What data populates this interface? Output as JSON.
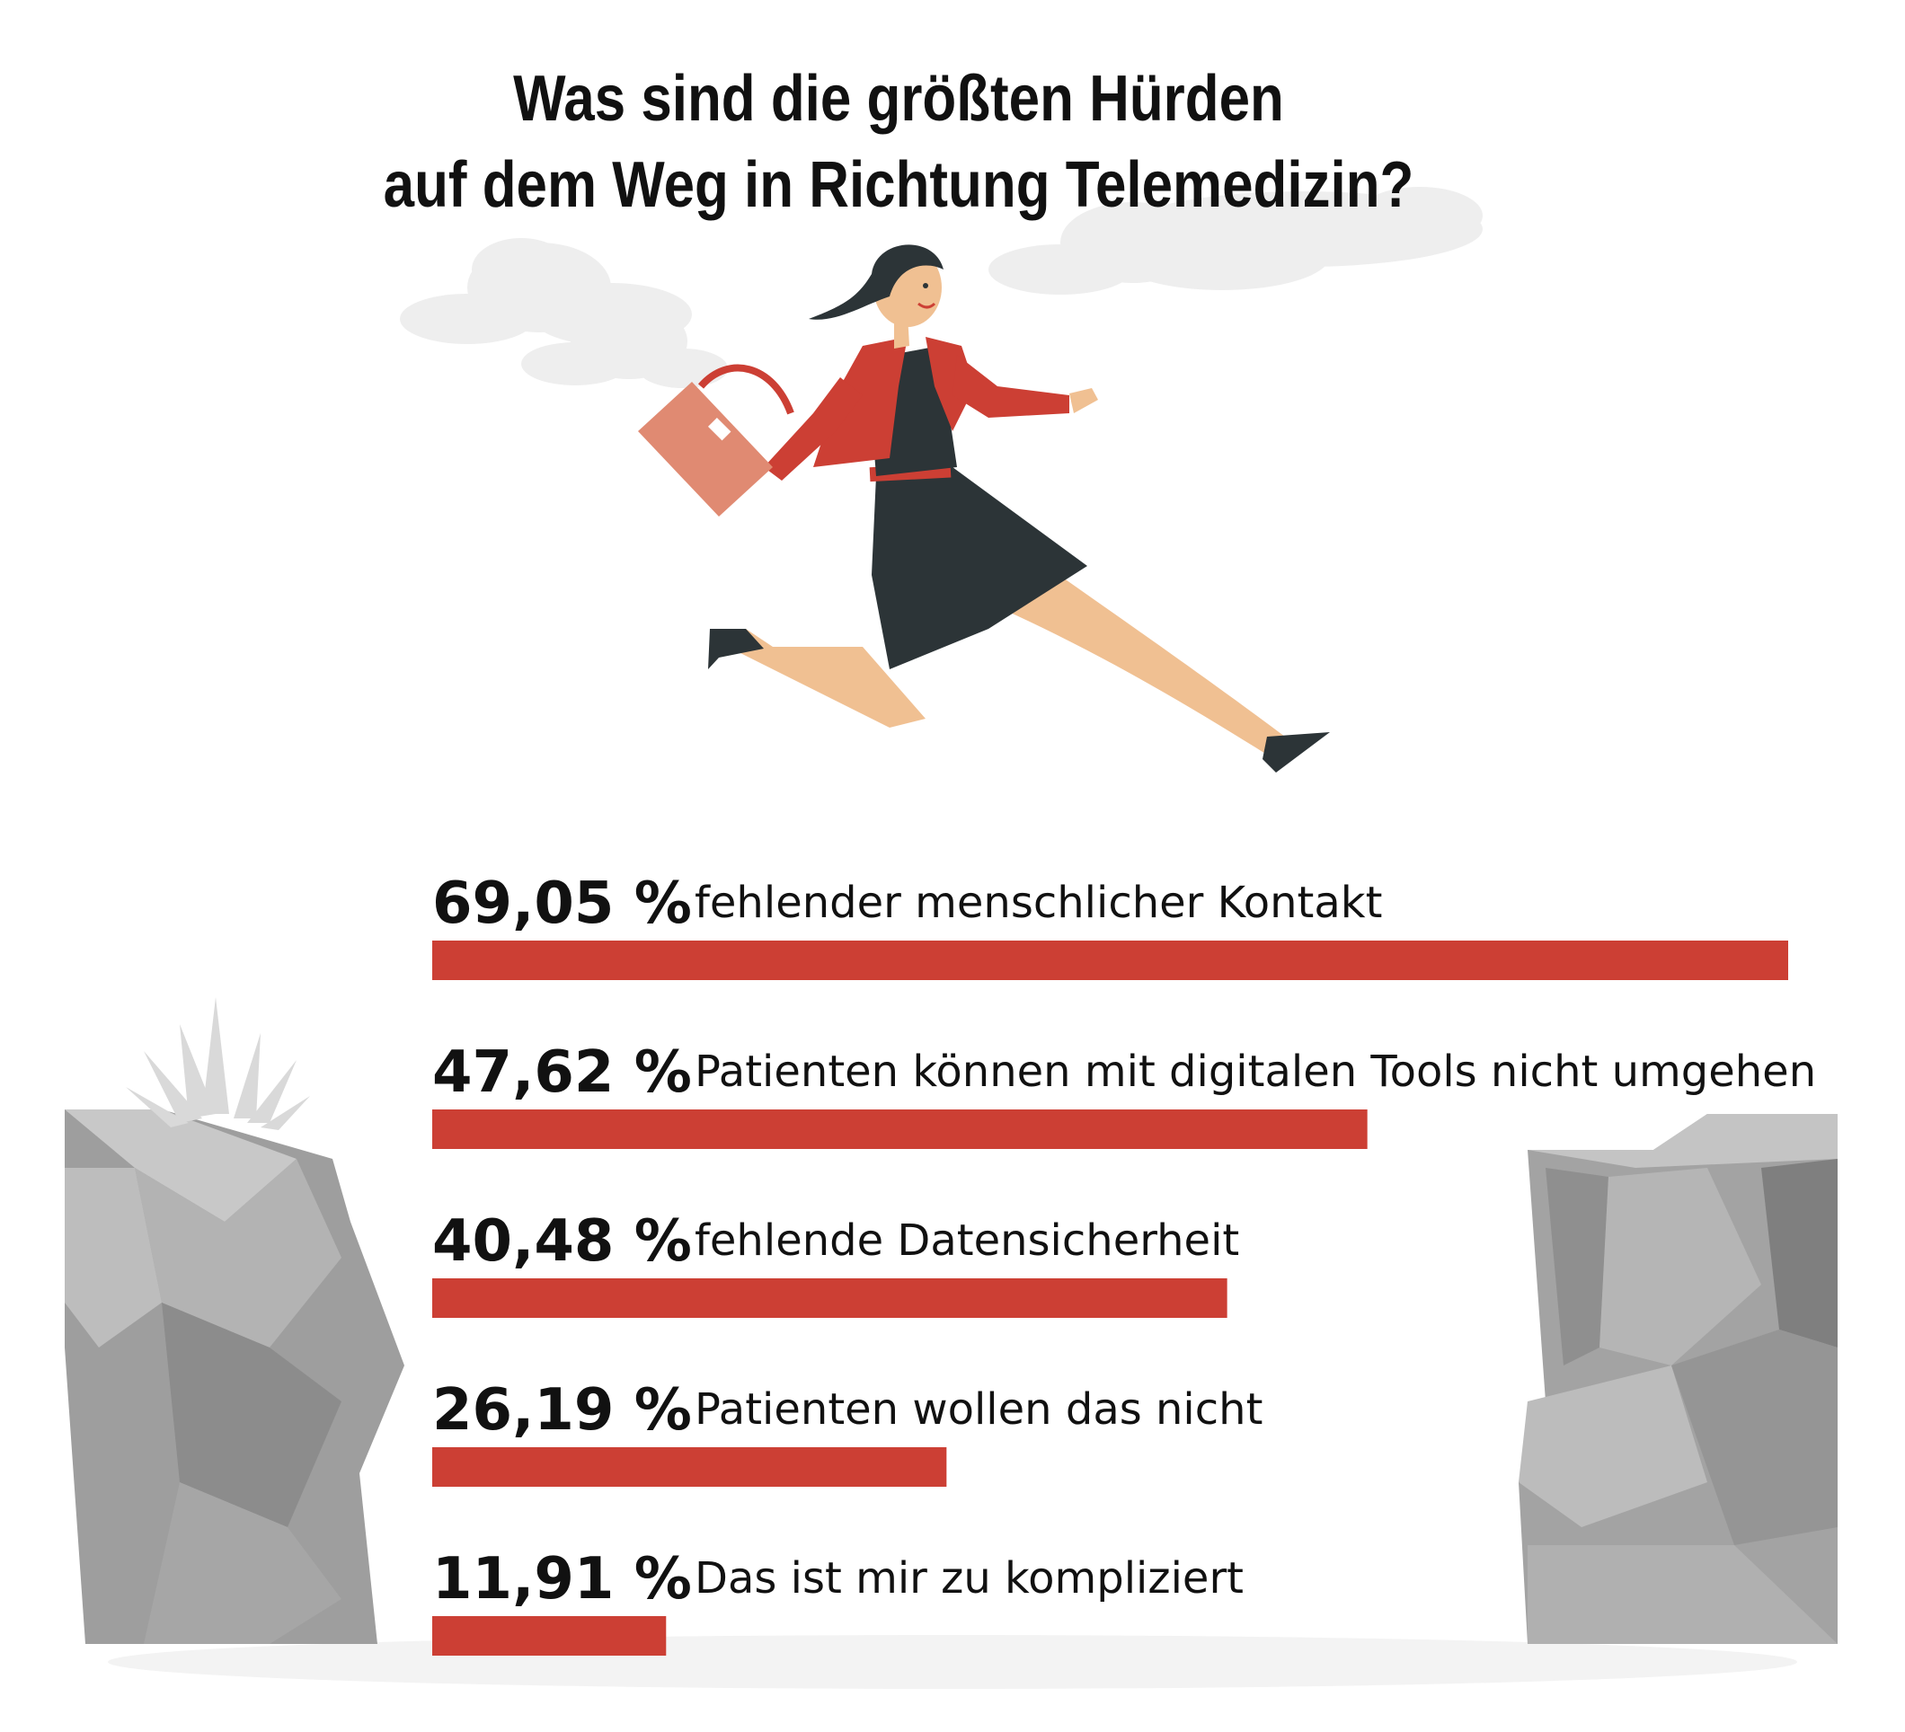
{
  "title_lines": [
    "Was sind die größten Hürden",
    "auf dem Weg in Richtung Telemedizin?"
  ],
  "colors": {
    "bar": "#cc3f34",
    "text": "#111111",
    "rock": "#a9a9a9",
    "cloud": "#eeeeee"
  },
  "illustration": {
    "figure": "running-woman-with-handbag",
    "scenery": "two rock cliffs with clouds"
  },
  "chart_data": {
    "type": "bar",
    "orientation": "horizontal",
    "categories": [
      "fehlender menschlicher Kontakt",
      "Patienten können mit digitalen Tools nicht umgehen",
      "fehlende Datensicherheit",
      "Patienten wollen das nicht",
      "Das ist mir zu kompliziert"
    ],
    "values": [
      69.05,
      47.62,
      40.48,
      26.19,
      11.91
    ],
    "value_labels": [
      "69,05 %",
      "47,62 %",
      "40,48 %",
      "26,19 %",
      "11,91 %"
    ],
    "unit": "%",
    "xlim": [
      0,
      69.05
    ],
    "grid": false,
    "legend": "none"
  }
}
